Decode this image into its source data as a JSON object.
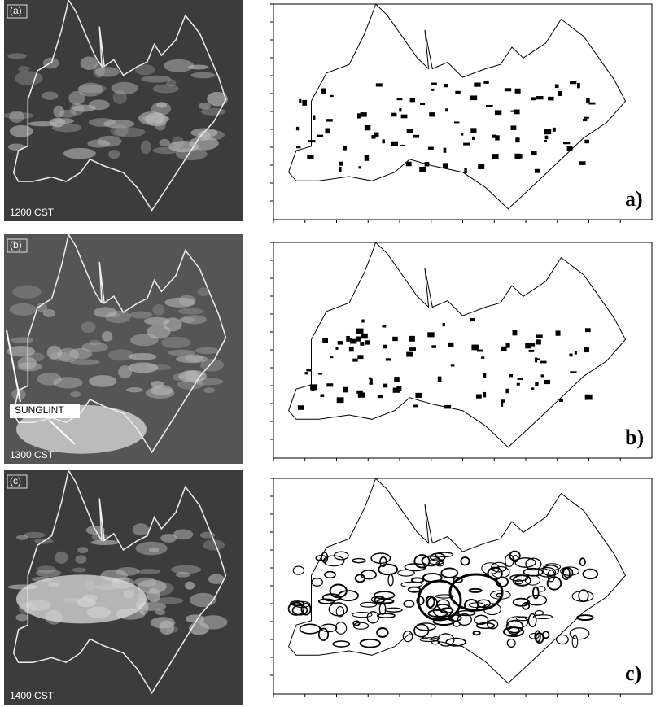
{
  "panels": [
    {
      "label": "(a)",
      "time": "1200 CST"
    },
    {
      "label": "(b)",
      "time": "1300 CST",
      "annotation": "SUNGLINT"
    },
    {
      "label": "(c)",
      "time": "1400 CST"
    }
  ],
  "plots": [
    {
      "label": "a)"
    },
    {
      "label": "b)"
    },
    {
      "label": "c)"
    }
  ]
}
